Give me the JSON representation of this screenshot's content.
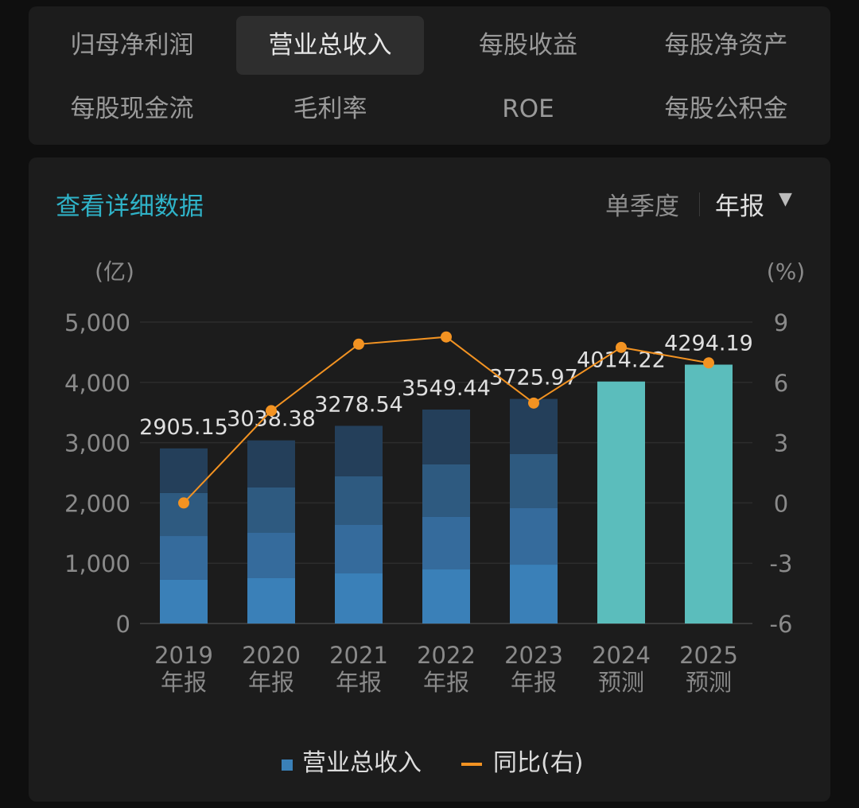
{
  "tabs": [
    {
      "label": "归母净利润",
      "active": false
    },
    {
      "label": "营业总收入",
      "active": true
    },
    {
      "label": "每股收益",
      "active": false
    },
    {
      "label": "每股净资产",
      "active": false
    },
    {
      "label": "每股现金流",
      "active": false
    },
    {
      "label": "毛利率",
      "active": false
    },
    {
      "label": "ROE",
      "active": false
    },
    {
      "label": "每股公积金",
      "active": false
    }
  ],
  "header": {
    "detail_link": "查看详细数据",
    "quarterly": "单季度",
    "annual": "年报",
    "dropdown_icon": "triangle-down-icon"
  },
  "colors": {
    "accent": "#2fb3c8",
    "line": "#f39322",
    "forecast": "#5bbdbc",
    "segments": [
      "#3a80b8",
      "#356b9c",
      "#2e5a80",
      "#243f5a"
    ]
  },
  "chart_data": {
    "type": "bar",
    "left_unit": "(亿)",
    "right_unit": "(%)",
    "ylim": [
      0,
      5000
    ],
    "yticks": [
      "0",
      "1,000",
      "2,000",
      "3,000",
      "4,000",
      "5,000"
    ],
    "y2lim": [
      -6,
      9
    ],
    "y2ticks": [
      "-6",
      "-3",
      "0",
      "3",
      "6",
      "9"
    ],
    "grid": true,
    "categories": [
      [
        "2019",
        "年报"
      ],
      [
        "2020",
        "年报"
      ],
      [
        "2021",
        "年报"
      ],
      [
        "2022",
        "年报"
      ],
      [
        "2023",
        "年报"
      ],
      [
        "2024",
        "预测"
      ],
      [
        "2025",
        "预测"
      ]
    ],
    "totals": [
      2905.15,
      3038.38,
      3278.54,
      3549.44,
      3725.97,
      4014.22,
      4294.19
    ],
    "total_labels": [
      "2905.15",
      "3038.38",
      "3278.54",
      "3549.44",
      "3725.97",
      "4014.22",
      "4294.19"
    ],
    "forecast": [
      false,
      false,
      false,
      false,
      false,
      true,
      true
    ],
    "quarterly_segments": [
      [
        726,
        725,
        713,
        741
      ],
      [
        752,
        752,
        752,
        782
      ],
      [
        831,
        805,
        805,
        838
      ],
      [
        897,
        871,
        871,
        910
      ],
      [
        976,
        937,
        897,
        916
      ],
      null,
      null
    ],
    "yoy": [
      0.0,
      4.59,
      7.9,
      8.26,
      4.97,
      7.74,
      6.97
    ],
    "legend": [
      {
        "label": "营业总收入",
        "type": "bar"
      },
      {
        "label": "同比(右)",
        "type": "line"
      }
    ],
    "legend_placement": "bottom"
  }
}
